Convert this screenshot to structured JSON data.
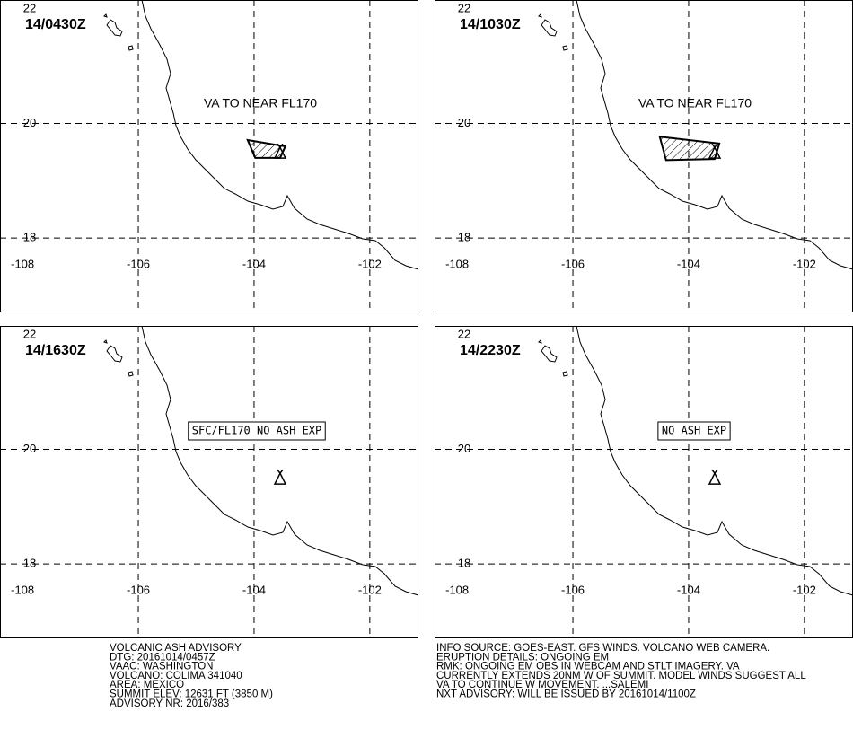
{
  "map": {
    "xlim": [
      -108.39,
      -101.16
    ],
    "ylim": [
      16.7,
      22.157
    ],
    "xticks": [
      -108,
      -106,
      -104,
      -102
    ],
    "yticks": [
      18,
      20,
      22
    ],
    "volcano": {
      "lon": -103.55,
      "lat": 19.52
    }
  },
  "panels": [
    {
      "time": "14/0430Z",
      "annotation": "VA TO NEAR FL170",
      "boxed": false,
      "ash_polygon": {
        "lon": [
          -104.11,
          -103.46,
          -103.55,
          -103.98
        ],
        "lat": [
          19.71,
          19.6,
          19.4,
          19.4
        ]
      }
    },
    {
      "time": "14/1030Z",
      "annotation": "VA TO NEAR FL170",
      "boxed": false,
      "ash_polygon": {
        "lon": [
          -104.5,
          -103.47,
          -103.55,
          -104.39
        ],
        "lat": [
          19.77,
          19.65,
          19.38,
          19.36
        ]
      }
    },
    {
      "time": "14/1630Z",
      "annotation": "SFC/FL170 NO ASH EXP",
      "boxed": true
    },
    {
      "time": "14/2230Z",
      "annotation": "NO ASH EXP",
      "boxed": true
    }
  ],
  "advisory": {
    "left": [
      "VOLCANIC ASH ADVISORY",
      "DTG: 20161014/0457Z",
      "VAAC: WASHINGTON",
      "VOLCANO: COLIMA 341040",
      "AREA: MEXICO",
      "SUMMIT ELEV: 12631 FT (3850 M)",
      "ADVISORY NR: 2016/383"
    ],
    "right": [
      "INFO SOURCE: GOES-EAST. GFS WINDS. VOLCANO WEB CAMERA.",
      "ERUPTION DETAILS: ONGOING EM",
      "RMK: ONGOING EM OBS IN WEBCAM AND STLT IMAGERY. VA",
      "CURRENTLY EXTENDS 20NM W OF SUMMIT. MODEL WINDS SUGGEST ALL",
      "VA TO CONTINUE W MOVEMENT. ...SALEMI",
      "NXT ADVISORY: WILL BE ISSUED BY 20161014/1100Z"
    ]
  }
}
